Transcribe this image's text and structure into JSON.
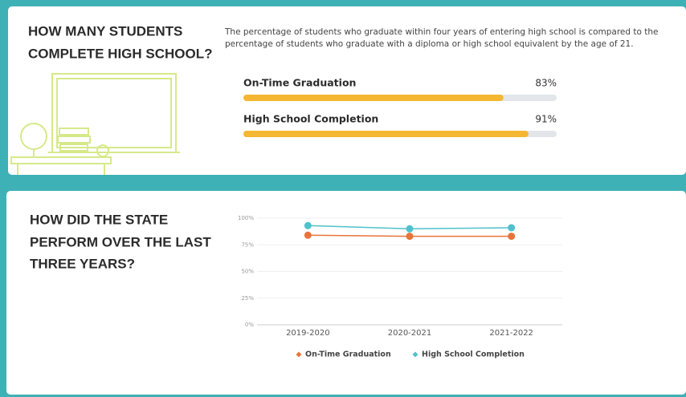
{
  "section1": {
    "heading": [
      "HOW MANY STUDENTS",
      "COMPLETE HIGH SCHOOL?"
    ],
    "description": [
      "The percentage of students who graduate within four years of entering high school is compared to the",
      "percentage of students who graduate with a diploma or high school equivalent by the age of 21."
    ],
    "progress": [
      {
        "label": "On-Time Graduation",
        "value": 83,
        "value_label": "83%",
        "max": 100
      },
      {
        "label": "High School Completion",
        "value": 91,
        "value_label": "91%",
        "max": 100
      }
    ],
    "bar_color": "#f5b731",
    "track_color": "#e2e6ea"
  },
  "section2": {
    "heading": [
      "HOW DID THE STATE",
      "PERFORM OVER THE LAST",
      "THREE YEARS?"
    ]
  },
  "chart_data": {
    "type": "line",
    "categories": [
      "2019-2020",
      "2020-2021",
      "2021-2022"
    ],
    "series": [
      {
        "name": "On-Time Graduation",
        "color": "#e8743b",
        "values": [
          84,
          83,
          83
        ]
      },
      {
        "name": "High School Completion",
        "color": "#4fc1cc",
        "values": [
          93,
          90,
          91
        ]
      }
    ],
    "ylim": [
      0,
      100
    ],
    "yticks": [
      {
        "value": 0,
        "label": "0%"
      },
      {
        "value": 25,
        "label": "25%"
      },
      {
        "value": 50,
        "label": "50%"
      },
      {
        "value": 75,
        "label": "75%"
      },
      {
        "value": 100,
        "label": "100%"
      }
    ],
    "grid": true,
    "legend": "bottom"
  }
}
